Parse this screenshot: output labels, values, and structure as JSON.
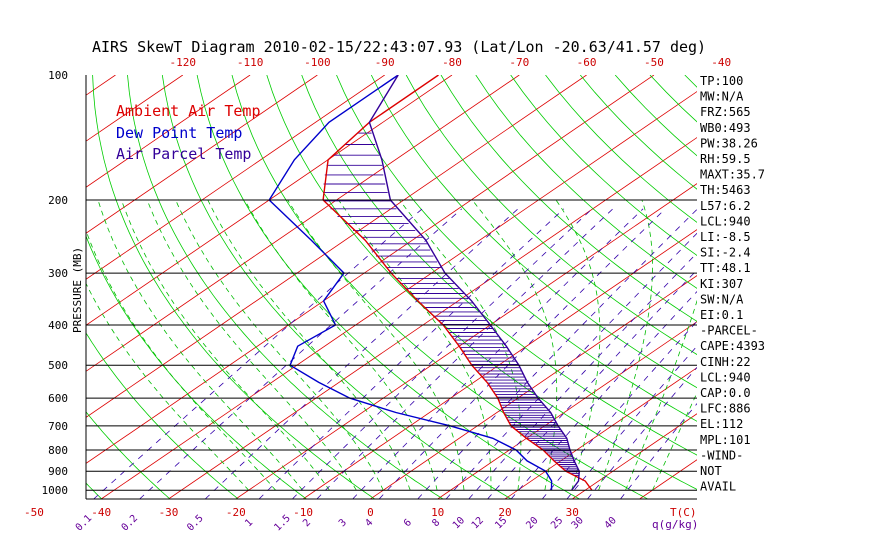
{
  "title": "AIRS SkewT Diagram 2010-02-15/22:43:07.93 (Lat/Lon -20.63/41.57 deg)",
  "colors": {
    "ambient": "#dd0000",
    "dewpoint": "#0000cc",
    "parcel": "#330099",
    "isotherm": "#dd0000",
    "dry_adiabat": "#00cc00",
    "moist_adiabat": "#00bb00",
    "mixing_ratio": "#3300aa",
    "cape_hatch": "#330099",
    "isobar": "#000000",
    "tick_label": "#cc0000",
    "mixing_label": "#660099"
  },
  "chart_data": {
    "type": "skew-t",
    "title": "AIRS SkewT Diagram 2010-02-15/22:43:07.93 (Lat/Lon -20.63/41.57 deg)",
    "ylabel": "PRESSURE (MB)",
    "pressure_ticks": [
      100,
      200,
      300,
      400,
      500,
      600,
      700,
      800,
      900,
      1000
    ],
    "top_temp_ticks": [
      -120,
      -110,
      -100,
      -90,
      -80,
      -70,
      -60,
      -50,
      -40
    ],
    "bottom_temp_ticks": [
      -50,
      -40,
      -30,
      -20,
      -10,
      0,
      10,
      20,
      30
    ],
    "bottom_temp_unit": "T(C)",
    "mixing_ratio_ticks": [
      "0.1",
      "0.2",
      "0.5",
      "1",
      "1.5",
      "2",
      "3",
      "4",
      "6",
      "8",
      "10",
      "12",
      "15",
      "20",
      "25",
      "30",
      "40"
    ],
    "mixing_ratio_unit": "q(g/kg)",
    "legend": [
      "Ambient Air Temp",
      "Dew Point Temp",
      "Air Parcel Temp"
    ],
    "series": [
      {
        "name": "Ambient Air Temp",
        "points": [
          [
            100,
            -82
          ],
          [
            130,
            -82
          ],
          [
            160,
            -80
          ],
          [
            200,
            -72
          ],
          [
            250,
            -57
          ],
          [
            300,
            -46
          ],
          [
            350,
            -36
          ],
          [
            400,
            -27
          ],
          [
            450,
            -20
          ],
          [
            500,
            -14
          ],
          [
            550,
            -8
          ],
          [
            600,
            -3
          ],
          [
            650,
            1
          ],
          [
            700,
            5
          ],
          [
            750,
            10
          ],
          [
            800,
            15
          ],
          [
            850,
            19
          ],
          [
            900,
            23
          ],
          [
            950,
            28
          ],
          [
            1000,
            31
          ]
        ]
      },
      {
        "name": "Dew Point Temp",
        "points": [
          [
            100,
            -88
          ],
          [
            130,
            -88
          ],
          [
            160,
            -85
          ],
          [
            200,
            -80
          ],
          [
            250,
            -65
          ],
          [
            300,
            -53
          ],
          [
            350,
            -50
          ],
          [
            400,
            -43
          ],
          [
            450,
            -44
          ],
          [
            500,
            -41
          ],
          [
            550,
            -33
          ],
          [
            600,
            -25
          ],
          [
            650,
            -15
          ],
          [
            700,
            -4
          ],
          [
            750,
            5
          ],
          [
            800,
            11
          ],
          [
            850,
            15
          ],
          [
            900,
            20
          ],
          [
            950,
            23
          ],
          [
            1000,
            25
          ]
        ]
      },
      {
        "name": "Air Parcel Temp",
        "points": [
          [
            100,
            -88
          ],
          [
            130,
            -82
          ],
          [
            160,
            -72
          ],
          [
            200,
            -62
          ],
          [
            250,
            -48
          ],
          [
            300,
            -38
          ],
          [
            350,
            -28
          ],
          [
            400,
            -20
          ],
          [
            450,
            -13
          ],
          [
            500,
            -7
          ],
          [
            550,
            -2
          ],
          [
            600,
            3
          ],
          [
            650,
            8
          ],
          [
            700,
            12
          ],
          [
            750,
            16
          ],
          [
            800,
            19
          ],
          [
            850,
            22
          ],
          [
            900,
            25
          ],
          [
            950,
            27
          ],
          [
            1000,
            28
          ]
        ]
      }
    ]
  },
  "indices": [
    "TP:100",
    "MW:N/A",
    "FRZ:565",
    "WB0:493",
    "PW:38.26",
    "RH:59.5",
    "MAXT:35.7",
    "TH:5463",
    "L57:6.2",
    "LCL:940",
    "LI:-8.5",
    "SI:-2.4",
    "TT:48.1",
    "KI:307",
    "SW:N/A",
    "EI:0.1",
    "-PARCEL-",
    "CAPE:4393",
    "CINH:22",
    "LCL:940",
    "CAP:0.0",
    "LFC:886",
    "EL:112",
    "MPL:101",
    "-WIND-",
    "NOT",
    "AVAIL"
  ]
}
